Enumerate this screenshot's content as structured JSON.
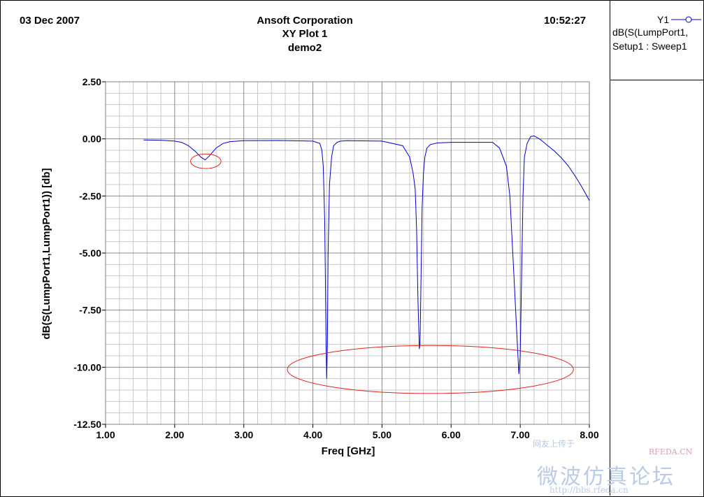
{
  "header": {
    "date": "03 Dec 2007",
    "time": "10:52:27",
    "company": "Ansoft Corporation"
  },
  "legend": {
    "axis": "Y1",
    "line1": "dB(S(LumpPort1,",
    "line2": "Setup1 : Sweep1"
  },
  "watermark": {
    "top": "网友上传于",
    "site": "RFEDA.CN",
    "main": "微波仿真论坛",
    "url": "http://bbs.rfeda.cn"
  },
  "colors": {
    "curve": "#0000cc",
    "annotation": "#dd2222",
    "grid_major": "#888888",
    "grid_minor": "#c8c8c8"
  },
  "chart_data": {
    "type": "line",
    "title": "XY Plot 1",
    "subtitle": "demo2",
    "xlabel": "Freq [GHz]",
    "ylabel": "dB(S(LumpPort1,LumpPort1)) [db]",
    "xlim": [
      1.0,
      8.0
    ],
    "ylim": [
      -12.5,
      2.5
    ],
    "xticks": [
      "1.00",
      "2.00",
      "3.00",
      "4.00",
      "5.00",
      "6.00",
      "7.00",
      "8.00"
    ],
    "yticks": [
      "2.50",
      "0.00",
      "-2.50",
      "-5.00",
      "-7.50",
      "-10.00",
      "-12.50"
    ],
    "grid": true,
    "legend_position": "top-right",
    "series": [
      {
        "x": [
          1.55,
          1.8,
          2.0,
          2.1,
          2.2,
          2.3,
          2.38,
          2.44,
          2.5,
          2.6,
          2.7,
          2.8,
          3.0,
          3.5,
          4.0,
          4.1,
          4.13,
          4.15,
          4.17,
          4.18,
          4.19,
          4.2,
          4.21,
          4.22,
          4.24,
          4.27,
          4.3,
          4.35,
          4.4,
          4.5,
          5.0,
          5.3,
          5.4,
          5.45,
          5.48,
          5.5,
          5.52,
          5.54,
          5.55,
          5.56,
          5.58,
          5.6,
          5.62,
          5.65,
          5.7,
          5.8,
          6.0,
          6.6,
          6.7,
          6.8,
          6.85,
          6.9,
          6.95,
          6.98,
          7.0,
          7.02,
          7.04,
          7.06,
          7.1,
          7.15,
          7.2,
          7.25,
          7.3,
          7.4,
          7.5,
          7.6,
          7.7,
          7.8,
          7.9,
          8.0
        ],
        "y": [
          -0.05,
          -0.06,
          -0.1,
          -0.15,
          -0.3,
          -0.55,
          -0.8,
          -0.92,
          -0.75,
          -0.4,
          -0.2,
          -0.12,
          -0.08,
          -0.07,
          -0.1,
          -0.2,
          -0.5,
          -1.2,
          -3.5,
          -6.0,
          -9.0,
          -10.5,
          -9.0,
          -5.0,
          -2.0,
          -0.8,
          -0.3,
          -0.15,
          -0.1,
          -0.08,
          -0.1,
          -0.3,
          -0.8,
          -1.5,
          -2.2,
          -4.0,
          -7.0,
          -9.2,
          -9.0,
          -7.0,
          -3.0,
          -1.5,
          -0.8,
          -0.4,
          -0.25,
          -0.18,
          -0.15,
          -0.15,
          -0.4,
          -1.2,
          -2.5,
          -5.5,
          -8.5,
          -10.3,
          -9.5,
          -6.0,
          -2.5,
          -0.8,
          -0.2,
          0.1,
          0.13,
          0.05,
          -0.05,
          -0.3,
          -0.55,
          -0.85,
          -1.2,
          -1.65,
          -2.15,
          -2.7
        ]
      }
    ],
    "annotations": [
      {
        "shape": "ellipse",
        "cx": 2.45,
        "cy": -0.98,
        "rx": 0.22,
        "ry": 0.32
      },
      {
        "shape": "ellipse",
        "cx": 5.7,
        "cy": -10.1,
        "rx": 2.07,
        "ry": 1.05
      }
    ]
  }
}
